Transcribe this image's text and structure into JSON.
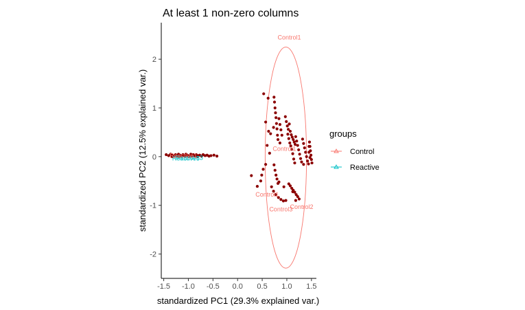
{
  "chart_data": {
    "type": "scatter",
    "title": "At least 1 non-zero columns",
    "xlabel": "standardized PC1 (29.3% explained var.)",
    "ylabel": "standardized PC2 (12.5% explained var.)",
    "xlim": [
      -1.55,
      1.6
    ],
    "ylim": [
      -2.5,
      2.75
    ],
    "x_ticks": [
      -1.5,
      -1.0,
      -0.5,
      0.0,
      0.5,
      1.0,
      1.5
    ],
    "x_tick_labels": [
      "-1.5",
      "-1.0",
      "-0.5",
      "0.0",
      "0.5",
      "1.0",
      "1.5"
    ],
    "y_ticks": [
      -2,
      -1,
      0,
      1,
      2
    ],
    "y_tick_labels": [
      "-2",
      "-1",
      "0",
      "1",
      "2"
    ],
    "grid": false,
    "legend": {
      "title": "groups",
      "placement": "right",
      "items": [
        {
          "name": "Control",
          "color": "#f8766d"
        },
        {
          "name": "Reactive",
          "color": "#00bfc4"
        }
      ]
    },
    "point_color": "#8b0000",
    "ellipse": {
      "group": "Control",
      "color": "#f8766d",
      "cx": 0.98,
      "cy": -0.02,
      "rx": 0.42,
      "ry": 2.27
    },
    "annotations": [
      {
        "text": "Control1",
        "x": 1.05,
        "y": 2.45,
        "color": "#f8766d"
      },
      {
        "text": "Control1",
        "x": 0.95,
        "y": 0.16,
        "color": "#f8766d"
      },
      {
        "text": "Control1",
        "x": 0.6,
        "y": -0.78,
        "color": "#f8766d"
      },
      {
        "text": "Control3",
        "x": 0.88,
        "y": -1.08,
        "color": "#f8766d"
      },
      {
        "text": "Control2",
        "x": 1.3,
        "y": -1.03,
        "color": "#f8766d"
      },
      {
        "text": "Reactive5",
        "x": -1.05,
        "y": -0.04,
        "color": "#00bfc4"
      },
      {
        "text": "Reactive3",
        "x": -0.98,
        "y": -0.02,
        "color": "#00bfc4"
      },
      {
        "text": "Reactive1",
        "x": -1.1,
        "y": 0.02,
        "color": "#f8766d"
      }
    ],
    "series": [
      {
        "name": "Reactive",
        "points": [
          [
            -1.45,
            0.04
          ],
          [
            -1.4,
            0.02
          ],
          [
            -1.36,
            0.05
          ],
          [
            -1.32,
            0.03
          ],
          [
            -1.29,
            0.01
          ],
          [
            -1.26,
            0.04
          ],
          [
            -1.23,
            0.02
          ],
          [
            -1.2,
            0.05
          ],
          [
            -1.17,
            0.03
          ],
          [
            -1.14,
            0.01
          ],
          [
            -1.11,
            0.04
          ],
          [
            -1.08,
            0.02
          ],
          [
            -1.05,
            0.05
          ],
          [
            -1.02,
            0.03
          ],
          [
            -0.99,
            0.0
          ],
          [
            -0.96,
            0.03
          ],
          [
            -0.93,
            0.01
          ],
          [
            -0.9,
            0.04
          ],
          [
            -0.87,
            0.02
          ],
          [
            -0.84,
            0.04
          ],
          [
            -0.8,
            0.02
          ],
          [
            -0.77,
            0.03
          ],
          [
            -0.73,
            0.01
          ],
          [
            -0.7,
            0.04
          ],
          [
            -0.66,
            0.02
          ],
          [
            -0.62,
            0.03
          ],
          [
            -0.58,
            0.01
          ],
          [
            -0.54,
            0.02
          ],
          [
            -0.48,
            0.03
          ],
          [
            -0.42,
            0.01
          ],
          [
            -1.33,
            0.0
          ],
          [
            -1.19,
            0.0
          ],
          [
            -1.07,
            0.01
          ],
          [
            -0.95,
            0.05
          ],
          [
            -0.82,
            0.0
          ]
        ]
      },
      {
        "name": "Control",
        "points": [
          [
            0.53,
            1.29
          ],
          [
            0.62,
            1.2
          ],
          [
            0.57,
            0.71
          ],
          [
            0.63,
            0.52
          ],
          [
            0.67,
            0.47
          ],
          [
            0.6,
            0.23
          ],
          [
            0.65,
            0.07
          ],
          [
            0.74,
            1.22
          ],
          [
            0.75,
            1.12
          ],
          [
            0.76,
            1.0
          ],
          [
            0.77,
            0.9
          ],
          [
            0.78,
            0.8
          ],
          [
            0.79,
            0.68
          ],
          [
            0.8,
            0.57
          ],
          [
            0.81,
            0.44
          ],
          [
            0.82,
            0.35
          ],
          [
            0.73,
            0.6
          ],
          [
            0.84,
            0.78
          ],
          [
            0.86,
            0.66
          ],
          [
            0.88,
            0.55
          ],
          [
            0.9,
            0.44
          ],
          [
            0.86,
            0.28
          ],
          [
            0.97,
            0.82
          ],
          [
            0.99,
            0.72
          ],
          [
            1.01,
            0.63
          ],
          [
            1.03,
            0.56
          ],
          [
            1.05,
            0.67
          ],
          [
            1.07,
            0.52
          ],
          [
            1.09,
            0.45
          ],
          [
            1.11,
            0.4
          ],
          [
            1.13,
            0.35
          ],
          [
            1.15,
            0.3
          ],
          [
            1.17,
            0.25
          ],
          [
            1.02,
            0.46
          ],
          [
            1.04,
            0.37
          ],
          [
            1.06,
            0.28
          ],
          [
            1.08,
            0.22
          ],
          [
            1.1,
            0.15
          ],
          [
            1.12,
            0.06
          ],
          [
            1.14,
            -0.05
          ],
          [
            1.16,
            -0.13
          ],
          [
            1.18,
            0.41
          ],
          [
            1.2,
            0.32
          ],
          [
            1.22,
            0.23
          ],
          [
            1.24,
            0.14
          ],
          [
            1.26,
            0.05
          ],
          [
            1.28,
            -0.04
          ],
          [
            1.3,
            -0.11
          ],
          [
            1.32,
            0.36
          ],
          [
            1.34,
            0.27
          ],
          [
            1.36,
            0.18
          ],
          [
            1.38,
            0.09
          ],
          [
            1.4,
            0.0
          ],
          [
            1.42,
            -0.09
          ],
          [
            1.44,
            -0.15
          ],
          [
            1.46,
            0.3
          ],
          [
            1.47,
            0.21
          ],
          [
            1.48,
            0.12
          ],
          [
            1.49,
            0.03
          ],
          [
            1.5,
            -0.06
          ],
          [
            1.51,
            -0.13
          ],
          [
            1.45,
            0.21
          ],
          [
            1.45,
            0.09
          ],
          [
            1.47,
            -0.02
          ],
          [
            1.34,
            -0.16
          ],
          [
            0.57,
            -0.16
          ],
          [
            0.52,
            -0.26
          ],
          [
            0.49,
            -0.38
          ],
          [
            0.47,
            -0.5
          ],
          [
            0.4,
            -0.61
          ],
          [
            0.28,
            -0.39
          ],
          [
            0.74,
            -0.17
          ],
          [
            0.76,
            -0.28
          ],
          [
            0.78,
            -0.38
          ],
          [
            0.8,
            -0.46
          ],
          [
            0.82,
            -0.55
          ],
          [
            0.69,
            -0.62
          ],
          [
            0.73,
            -0.71
          ],
          [
            0.77,
            -0.78
          ],
          [
            0.83,
            -0.84
          ],
          [
            0.88,
            -0.88
          ],
          [
            0.93,
            -0.91
          ],
          [
            0.98,
            -0.9
          ],
          [
            1.04,
            -0.56
          ],
          [
            1.07,
            -0.6
          ],
          [
            1.1,
            -0.65
          ],
          [
            1.13,
            -0.69
          ],
          [
            1.16,
            -0.73
          ],
          [
            1.19,
            -0.78
          ],
          [
            1.22,
            -0.82
          ],
          [
            1.25,
            -0.87
          ],
          [
            1.12,
            -0.72
          ],
          [
            1.18,
            -0.9
          ],
          [
            0.84,
            -0.52
          ],
          [
            0.94,
            -0.62
          ]
        ]
      }
    ]
  }
}
